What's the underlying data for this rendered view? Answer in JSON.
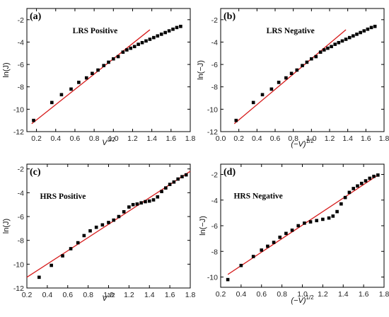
{
  "chart_data": [
    {
      "type": "scatter",
      "panel_label": "(a)",
      "annotation": "LRS Positive",
      "xlabel": {
        "main": "V",
        "sup": "1/2"
      },
      "ylabel": "ln(J)",
      "xlim": [
        0.1,
        1.8
      ],
      "ylim": [
        -12,
        -1
      ],
      "xticks": [
        0.2,
        0.4,
        0.6,
        0.8,
        1.0,
        1.2,
        1.4,
        1.6,
        1.8
      ],
      "xtick_labels": [
        "0.2",
        "0.4",
        "0.6",
        "0.8",
        "1.0",
        "1.2",
        "1.4",
        "1.6",
        "1.8"
      ],
      "yticks": [
        -12,
        -10,
        -8,
        -6,
        -4,
        -2
      ],
      "ytick_labels": [
        "-12",
        "-10",
        "-8",
        "-6",
        "-4",
        "-2"
      ],
      "points": [
        [
          0.17,
          -11.0
        ],
        [
          0.36,
          -9.4
        ],
        [
          0.46,
          -8.7
        ],
        [
          0.56,
          -8.2
        ],
        [
          0.64,
          -7.6
        ],
        [
          0.72,
          -7.2
        ],
        [
          0.78,
          -6.8
        ],
        [
          0.84,
          -6.5
        ],
        [
          0.9,
          -6.1
        ],
        [
          0.95,
          -5.8
        ],
        [
          1.0,
          -5.5
        ],
        [
          1.05,
          -5.3
        ],
        [
          1.1,
          -4.9
        ],
        [
          1.14,
          -4.7
        ],
        [
          1.18,
          -4.55
        ],
        [
          1.22,
          -4.4
        ],
        [
          1.26,
          -4.2
        ],
        [
          1.3,
          -4.05
        ],
        [
          1.34,
          -3.9
        ],
        [
          1.38,
          -3.75
        ],
        [
          1.42,
          -3.6
        ],
        [
          1.46,
          -3.45
        ],
        [
          1.5,
          -3.3
        ],
        [
          1.54,
          -3.15
        ],
        [
          1.58,
          -3.0
        ],
        [
          1.62,
          -2.85
        ],
        [
          1.66,
          -2.7
        ],
        [
          1.7,
          -2.6
        ]
      ],
      "fit": [
        [
          0.15,
          -11.3
        ],
        [
          1.38,
          -2.9
        ]
      ]
    },
    {
      "type": "scatter",
      "panel_label": "(b)",
      "annotation": "LRS Negative",
      "xlabel": {
        "main": "(−V)",
        "sup": "1/2"
      },
      "ylabel": "ln(−J)",
      "xlim": [
        0.0,
        1.8
      ],
      "ylim": [
        -12,
        -1
      ],
      "xticks": [
        0.0,
        0.2,
        0.4,
        0.6,
        0.8,
        1.0,
        1.2,
        1.4,
        1.6,
        1.8
      ],
      "xtick_labels": [
        "0.0",
        "0.2",
        "0.4",
        "0.6",
        "0.8",
        "1.0",
        "1.2",
        "1.4",
        "1.6",
        "1.8"
      ],
      "yticks": [
        -12,
        -10,
        -8,
        -6,
        -4,
        -2
      ],
      "ytick_labels": [
        "-12",
        "-10",
        "-8",
        "-6",
        "-4",
        "-2"
      ],
      "points": [
        [
          0.17,
          -11.0
        ],
        [
          0.36,
          -9.4
        ],
        [
          0.46,
          -8.7
        ],
        [
          0.56,
          -8.2
        ],
        [
          0.64,
          -7.6
        ],
        [
          0.72,
          -7.2
        ],
        [
          0.78,
          -6.8
        ],
        [
          0.84,
          -6.5
        ],
        [
          0.9,
          -6.1
        ],
        [
          0.95,
          -5.8
        ],
        [
          1.0,
          -5.5
        ],
        [
          1.05,
          -5.3
        ],
        [
          1.1,
          -4.9
        ],
        [
          1.14,
          -4.7
        ],
        [
          1.18,
          -4.55
        ],
        [
          1.22,
          -4.4
        ],
        [
          1.26,
          -4.2
        ],
        [
          1.3,
          -4.05
        ],
        [
          1.34,
          -3.9
        ],
        [
          1.38,
          -3.75
        ],
        [
          1.42,
          -3.6
        ],
        [
          1.46,
          -3.45
        ],
        [
          1.5,
          -3.3
        ],
        [
          1.54,
          -3.15
        ],
        [
          1.58,
          -3.0
        ],
        [
          1.62,
          -2.85
        ],
        [
          1.66,
          -2.7
        ],
        [
          1.7,
          -2.6
        ]
      ],
      "fit": [
        [
          0.15,
          -11.3
        ],
        [
          1.38,
          -2.9
        ]
      ]
    },
    {
      "type": "scatter",
      "panel_label": "(c)",
      "annotation": "HRS Positive",
      "xlabel": {
        "main": "V",
        "sup": "1/2"
      },
      "ylabel": "ln(J)",
      "xlim": [
        0.2,
        1.8
      ],
      "ylim": [
        -12,
        -1.6
      ],
      "xticks": [
        0.2,
        0.4,
        0.6,
        0.8,
        1.0,
        1.2,
        1.4,
        1.6,
        1.8
      ],
      "xtick_labels": [
        "0.2",
        "0.4",
        "0.6",
        "0.8",
        "1.0",
        "1.2",
        "1.4",
        "1.6",
        "1.8"
      ],
      "yticks": [
        -12,
        -10,
        -8,
        -6,
        -4,
        -2
      ],
      "ytick_labels": [
        "-12",
        "-10",
        "-8",
        "-6",
        "-4",
        "-2"
      ],
      "points": [
        [
          0.32,
          -11.1
        ],
        [
          0.44,
          -10.1
        ],
        [
          0.55,
          -9.3
        ],
        [
          0.63,
          -8.7
        ],
        [
          0.7,
          -8.2
        ],
        [
          0.76,
          -7.6
        ],
        [
          0.82,
          -7.2
        ],
        [
          0.88,
          -6.9
        ],
        [
          0.94,
          -6.7
        ],
        [
          1.0,
          -6.5
        ],
        [
          1.05,
          -6.3
        ],
        [
          1.1,
          -6.0
        ],
        [
          1.15,
          -5.6
        ],
        [
          1.2,
          -5.2
        ],
        [
          1.24,
          -5.0
        ],
        [
          1.28,
          -4.95
        ],
        [
          1.32,
          -4.85
        ],
        [
          1.36,
          -4.75
        ],
        [
          1.4,
          -4.7
        ],
        [
          1.44,
          -4.6
        ],
        [
          1.48,
          -4.35
        ],
        [
          1.52,
          -3.9
        ],
        [
          1.56,
          -3.6
        ],
        [
          1.6,
          -3.3
        ],
        [
          1.64,
          -3.1
        ],
        [
          1.68,
          -2.85
        ],
        [
          1.72,
          -2.65
        ],
        [
          1.76,
          -2.5
        ]
      ],
      "fit": [
        [
          0.2,
          -11.1
        ],
        [
          1.8,
          -2.2
        ]
      ]
    },
    {
      "type": "scatter",
      "panel_label": "(d)",
      "annotation": "HRS Negative",
      "xlabel": {
        "main": "(−V)",
        "sup": "1/2"
      },
      "ylabel": "ln(−J)",
      "xlim": [
        0.2,
        1.8
      ],
      "ylim": [
        -10.8,
        -1.2
      ],
      "xticks": [
        0.2,
        0.4,
        0.6,
        0.8,
        1.0,
        1.2,
        1.4,
        1.6,
        1.8
      ],
      "xtick_labels": [
        "0.2",
        "0.4",
        "0.6",
        "0.8",
        "1.0",
        "1.2",
        "1.4",
        "1.6",
        "1.8"
      ],
      "yticks": [
        -10,
        -8,
        -6,
        -4,
        -2
      ],
      "ytick_labels": [
        "-10",
        "-8",
        "-6",
        "-4",
        "-2"
      ],
      "points": [
        [
          0.27,
          -10.2
        ],
        [
          0.4,
          -9.1
        ],
        [
          0.52,
          -8.4
        ],
        [
          0.6,
          -7.9
        ],
        [
          0.66,
          -7.6
        ],
        [
          0.72,
          -7.3
        ],
        [
          0.78,
          -6.9
        ],
        [
          0.84,
          -6.6
        ],
        [
          0.9,
          -6.35
        ],
        [
          0.96,
          -6.0
        ],
        [
          1.02,
          -5.8
        ],
        [
          1.08,
          -5.7
        ],
        [
          1.14,
          -5.6
        ],
        [
          1.2,
          -5.5
        ],
        [
          1.26,
          -5.4
        ],
        [
          1.3,
          -5.25
        ],
        [
          1.34,
          -4.9
        ],
        [
          1.38,
          -4.3
        ],
        [
          1.42,
          -3.8
        ],
        [
          1.46,
          -3.4
        ],
        [
          1.5,
          -3.1
        ],
        [
          1.54,
          -2.9
        ],
        [
          1.58,
          -2.7
        ],
        [
          1.62,
          -2.5
        ],
        [
          1.66,
          -2.3
        ],
        [
          1.7,
          -2.15
        ],
        [
          1.74,
          -2.05
        ]
      ],
      "fit": [
        [
          0.27,
          -9.8
        ],
        [
          1.75,
          -2.0
        ]
      ]
    }
  ]
}
